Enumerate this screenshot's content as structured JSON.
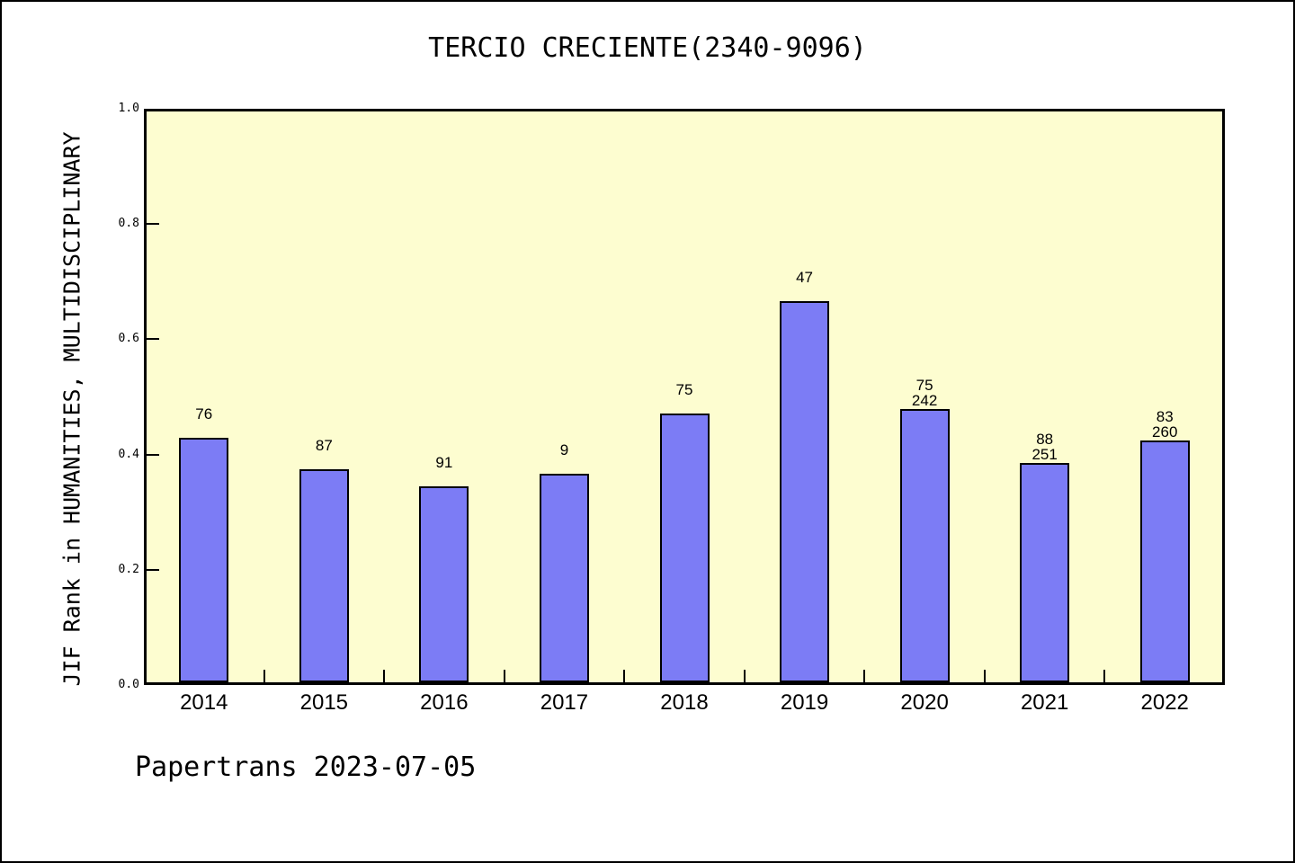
{
  "window": {
    "title": "TERCIO CRECIENTE(2340-9096)"
  },
  "footer": {
    "caption": "Papertrans 2023-07-05"
  },
  "chart_data": {
    "type": "bar",
    "title": "TERCIO CRECIENTE(2340-9096)",
    "xlabel": "",
    "ylabel": "JIF Rank in HUMANITIES, MULTIDISCIPLINARY",
    "categories": [
      "2014",
      "2015",
      "2016",
      "2017",
      "2018",
      "2019",
      "2020",
      "2021",
      "2022"
    ],
    "values": [
      0.429,
      0.373,
      0.343,
      0.365,
      0.471,
      0.667,
      0.479,
      0.384,
      0.423
    ],
    "bar_labels": [
      [
        "76"
      ],
      [
        "87"
      ],
      [
        "91"
      ],
      [
        "9"
      ],
      [
        "75"
      ],
      [
        "47"
      ],
      [
        "75",
        "242"
      ],
      [
        "88",
        "251"
      ],
      [
        "83",
        "260"
      ]
    ],
    "ylim": [
      0,
      1
    ],
    "yticks": [
      0.0,
      0.2,
      0.4,
      0.6,
      0.8,
      1.0
    ],
    "ytick_labels": [
      "0.0",
      "0.2",
      "0.4",
      "0.6",
      "0.8",
      "1.0"
    ],
    "grid": false,
    "legend_position": "none",
    "colors": {
      "bar_fill": "#7C7CF5",
      "bar_edge": "#000000",
      "plot_bg": "#FDFDD0",
      "figure_bg": "#FFFFFF",
      "text": "#000000"
    }
  }
}
